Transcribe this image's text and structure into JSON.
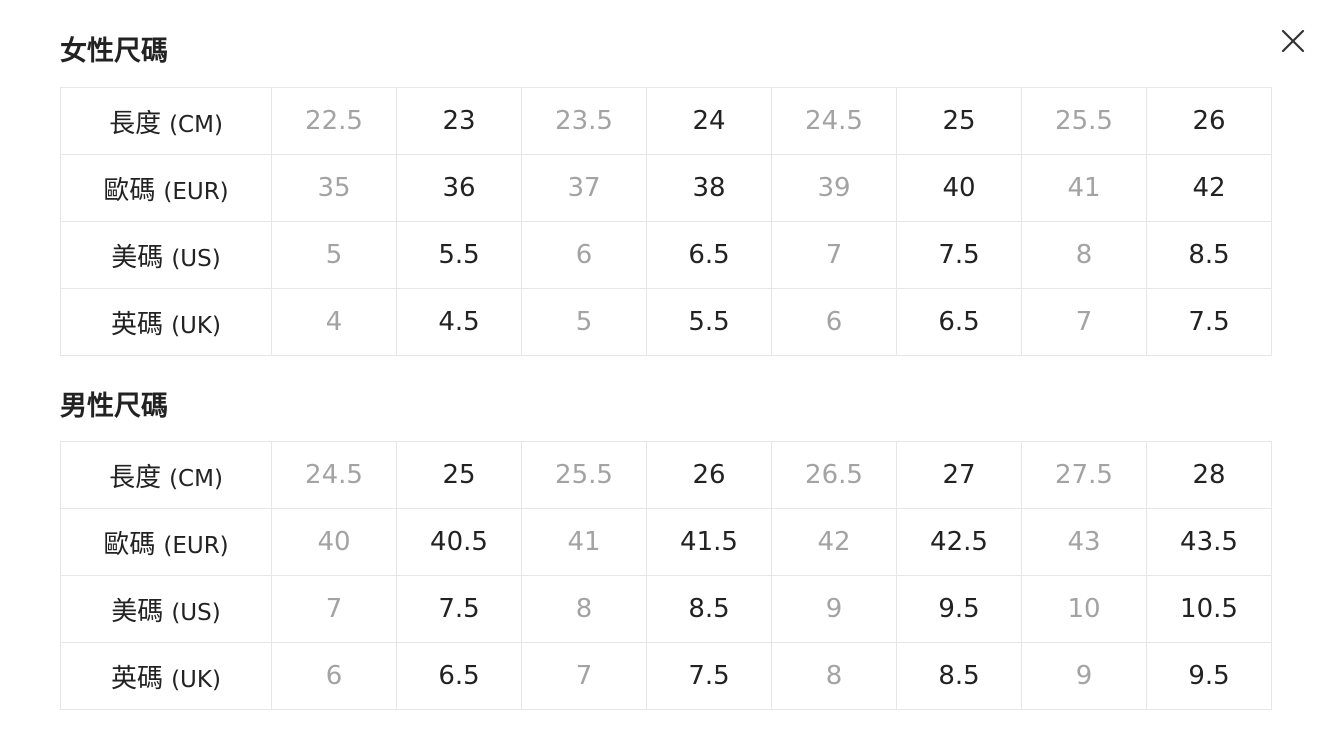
{
  "close_icon": "close-icon",
  "colors": {
    "text_dark": "#222222",
    "text_light": "#a3a3a3",
    "border": "#e6e6e6"
  },
  "women": {
    "title": "女性尺碼",
    "rows": [
      {
        "label": "長度",
        "unit": "(CM)",
        "values": [
          "22.5",
          "23",
          "23.5",
          "24",
          "24.5",
          "25",
          "25.5",
          "26"
        ]
      },
      {
        "label": "歐碼",
        "unit": "(EUR)",
        "values": [
          "35",
          "36",
          "37",
          "38",
          "39",
          "40",
          "41",
          "42"
        ]
      },
      {
        "label": "美碼",
        "unit": "(US)",
        "values": [
          "5",
          "5.5",
          "6",
          "6.5",
          "7",
          "7.5",
          "8",
          "8.5"
        ]
      },
      {
        "label": "英碼",
        "unit": "(UK)",
        "values": [
          "4",
          "4.5",
          "5",
          "5.5",
          "6",
          "6.5",
          "7",
          "7.5"
        ]
      }
    ]
  },
  "men": {
    "title": "男性尺碼",
    "rows": [
      {
        "label": "長度",
        "unit": "(CM)",
        "values": [
          "24.5",
          "25",
          "25.5",
          "26",
          "26.5",
          "27",
          "27.5",
          "28"
        ]
      },
      {
        "label": "歐碼",
        "unit": "(EUR)",
        "values": [
          "40",
          "40.5",
          "41",
          "41.5",
          "42",
          "42.5",
          "43",
          "43.5"
        ]
      },
      {
        "label": "美碼",
        "unit": "(US)",
        "values": [
          "7",
          "7.5",
          "8",
          "8.5",
          "9",
          "9.5",
          "10",
          "10.5"
        ]
      },
      {
        "label": "英碼",
        "unit": "(UK)",
        "values": [
          "6",
          "6.5",
          "7",
          "7.5",
          "8",
          "8.5",
          "9",
          "9.5"
        ]
      }
    ]
  }
}
